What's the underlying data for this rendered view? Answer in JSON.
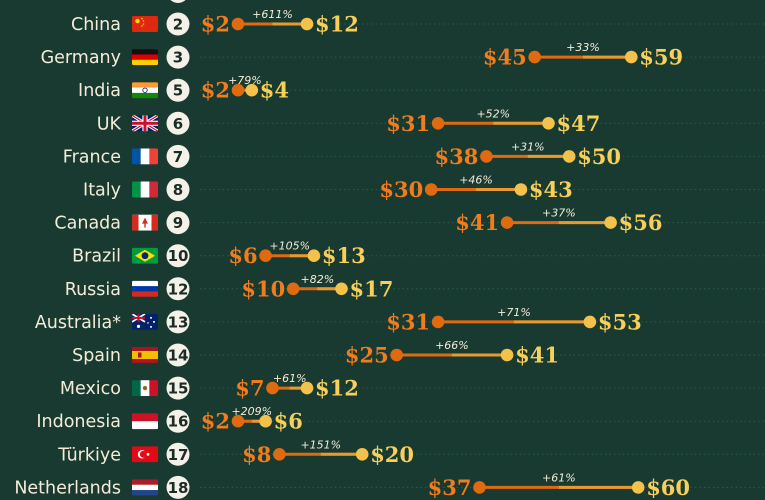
{
  "chart_data": {
    "type": "dumbbell",
    "rows": [
      {
        "country": "China",
        "rank": "2",
        "start": 2,
        "end": 12,
        "start_label": "$2",
        "end_label": "$12",
        "change": "+611%"
      },
      {
        "country": "Germany",
        "rank": "3",
        "start": 45,
        "end": 59,
        "start_label": "$45",
        "end_label": "$59",
        "change": "+33%"
      },
      {
        "country": "India",
        "rank": "5",
        "start": 2,
        "end": 4,
        "start_label": "$2",
        "end_label": "$4",
        "change": "+79%"
      },
      {
        "country": "UK",
        "rank": "6",
        "start": 31,
        "end": 47,
        "start_label": "$31",
        "end_label": "$47",
        "change": "+52%"
      },
      {
        "country": "France",
        "rank": "7",
        "start": 38,
        "end": 50,
        "start_label": "$38",
        "end_label": "$50",
        "change": "+31%"
      },
      {
        "country": "Italy",
        "rank": "8",
        "start": 30,
        "end": 43,
        "start_label": "$30",
        "end_label": "$43",
        "change": "+46%"
      },
      {
        "country": "Canada",
        "rank": "9",
        "start": 41,
        "end": 56,
        "start_label": "$41",
        "end_label": "$56",
        "change": "+37%"
      },
      {
        "country": "Brazil",
        "rank": "10",
        "start": 6,
        "end": 13,
        "start_label": "$6",
        "end_label": "$13",
        "change": "+105%"
      },
      {
        "country": "Russia",
        "rank": "12",
        "start": 10,
        "end": 17,
        "start_label": "$10",
        "end_label": "$17",
        "change": "+82%"
      },
      {
        "country": "Australia*",
        "rank": "13",
        "start": 31,
        "end": 53,
        "start_label": "$31",
        "end_label": "$53",
        "change": "+71%"
      },
      {
        "country": "Spain",
        "rank": "14",
        "start": 25,
        "end": 41,
        "start_label": "$25",
        "end_label": "$41",
        "change": "+66%"
      },
      {
        "country": "Mexico",
        "rank": "15",
        "start": 7,
        "end": 12,
        "start_label": "$7",
        "end_label": "$12",
        "change": "+61%"
      },
      {
        "country": "Indonesia",
        "rank": "16",
        "start": 2,
        "end": 6,
        "start_label": "$2",
        "end_label": "$6",
        "change": "+209%"
      },
      {
        "country": "Türkiye",
        "rank": "17",
        "start": 8,
        "end": 20,
        "start_label": "$8",
        "end_label": "$20",
        "change": "+151%"
      },
      {
        "country": "Netherlands",
        "rank": "18",
        "start": 37,
        "end": 60,
        "start_label": "$37",
        "end_label": "$60",
        "change": "+61%"
      }
    ]
  },
  "flags": {
    "China": "china-flag-icon",
    "Germany": "germany-flag-icon",
    "India": "india-flag-icon",
    "UK": "uk-flag-icon",
    "France": "france-flag-icon",
    "Italy": "italy-flag-icon",
    "Canada": "canada-flag-icon",
    "Brazil": "brazil-flag-icon",
    "Russia": "russia-flag-icon",
    "Australia*": "australia-flag-icon",
    "Spain": "spain-flag-icon",
    "Mexico": "mexico-flag-icon",
    "Indonesia": "indonesia-flag-icon",
    "Türkiye": "turkiye-flag-icon",
    "Netherlands": "netherlands-flag-icon"
  },
  "colors": {
    "background": "#183a30",
    "start_dot": "#e06a10",
    "end_dot": "#f2c24a",
    "start_text": "#f07c1e",
    "end_text": "#f7cf5a",
    "country_text": "#f4ecd8",
    "rank_circle": "#f4f1e8",
    "rank_text": "#1c2b26",
    "change_text": "#f4ecd8",
    "dotted_guide": "#2d5a4b"
  }
}
